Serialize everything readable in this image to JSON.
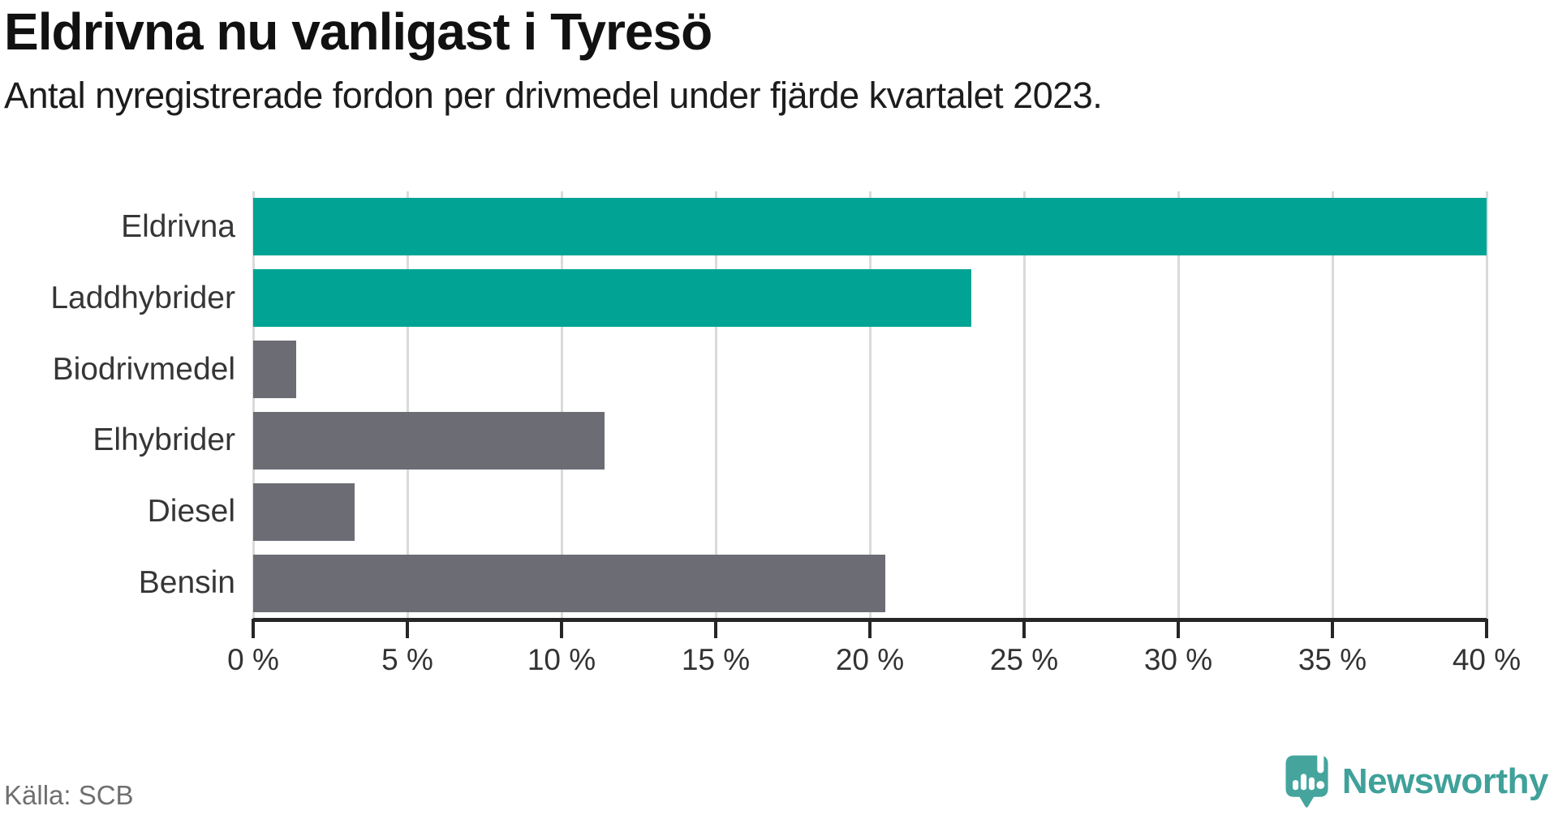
{
  "header": {
    "title": "Eldrivna nu vanligast i Tyresö",
    "subtitle": "Antal nyregistrerade fordon per drivmedel under fjärde kvartalet 2023."
  },
  "chart_data": {
    "type": "bar",
    "orientation": "horizontal",
    "title": "Eldrivna nu vanligast i Tyresö",
    "subtitle": "Antal nyregistrerade fordon per drivmedel under fjärde kvartalet 2023.",
    "categories": [
      "Eldrivna",
      "Laddhybrider",
      "Biodrivmedel",
      "Elhybrider",
      "Diesel",
      "Bensin"
    ],
    "values": [
      40.0,
      23.3,
      1.4,
      11.4,
      3.3,
      20.5
    ],
    "unit": "%",
    "bar_colors": [
      "#00a394",
      "#00a394",
      "#6c6c75",
      "#6c6c75",
      "#6c6c75",
      "#6c6c75"
    ],
    "xlim": [
      0,
      40
    ],
    "x_ticks": [
      0,
      5,
      10,
      15,
      20,
      25,
      30,
      35,
      40
    ],
    "x_tick_labels": [
      "0 %",
      "5 %",
      "10 %",
      "15 %",
      "20 %",
      "25 %",
      "30 %",
      "35 %",
      "40 %"
    ],
    "xlabel": "",
    "ylabel": "",
    "grid": "vertical",
    "legend": "none"
  },
  "footer": {
    "source": "Källa: SCB",
    "brand": "Newsworthy"
  },
  "colors": {
    "accent_teal": "#00a394",
    "neutral_gray": "#6c6c75",
    "brand_teal": "#3fa19a",
    "gridline": "#dadada",
    "axis": "#262626"
  },
  "icons": {
    "logo": "newsworthy-speech-bubble-chart-icon"
  }
}
